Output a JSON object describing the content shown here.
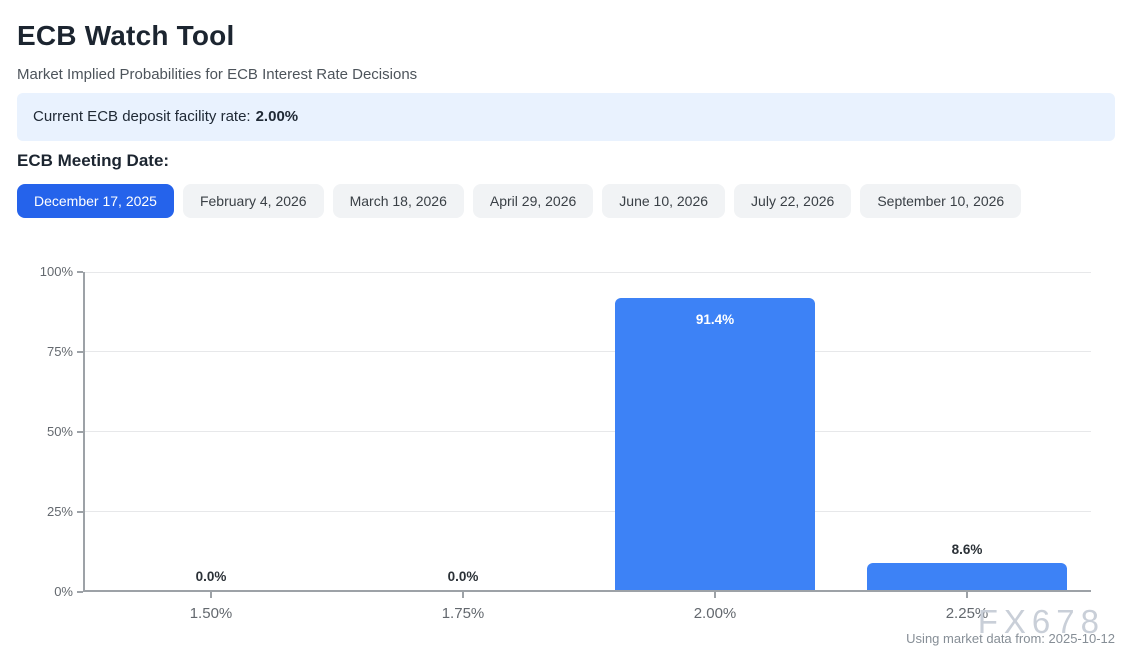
{
  "page": {
    "title": "ECB Watch Tool",
    "subtitle": "Market Implied Probabilities for ECB Interest Rate Decisions"
  },
  "banner": {
    "label": "Current ECB deposit facility rate:",
    "value": "2.00%"
  },
  "meeting_selector": {
    "label": "ECB Meeting Date:",
    "selected_index": 0,
    "dates": [
      "December 17, 2025",
      "February 4, 2026",
      "March 18, 2026",
      "April 29, 2026",
      "June 10, 2026",
      "July 22, 2026",
      "September 10, 2026"
    ]
  },
  "chart_data": {
    "type": "bar",
    "categories": [
      "1.50%",
      "1.75%",
      "2.00%",
      "2.25%"
    ],
    "values": [
      0.0,
      0.0,
      91.4,
      8.6
    ],
    "value_labels": [
      "0.0%",
      "0.0%",
      "91.4%",
      "8.6%"
    ],
    "y_ticks": [
      "0%",
      "25%",
      "50%",
      "75%",
      "100%"
    ],
    "ylim": [
      0,
      100
    ],
    "title": "",
    "xlabel": "",
    "ylabel": "",
    "grid": true,
    "legend": "none",
    "bar_color": "#3d82f6"
  },
  "footer": {
    "watermark": "FX678",
    "source_note": "Using market data from: 2025-10-12"
  },
  "colors": {
    "accent": "#2563eb",
    "bar": "#3d82f6",
    "banner_bg": "#e9f2fe",
    "axis": "#9da2a7",
    "gridline": "#e7e8ea"
  }
}
